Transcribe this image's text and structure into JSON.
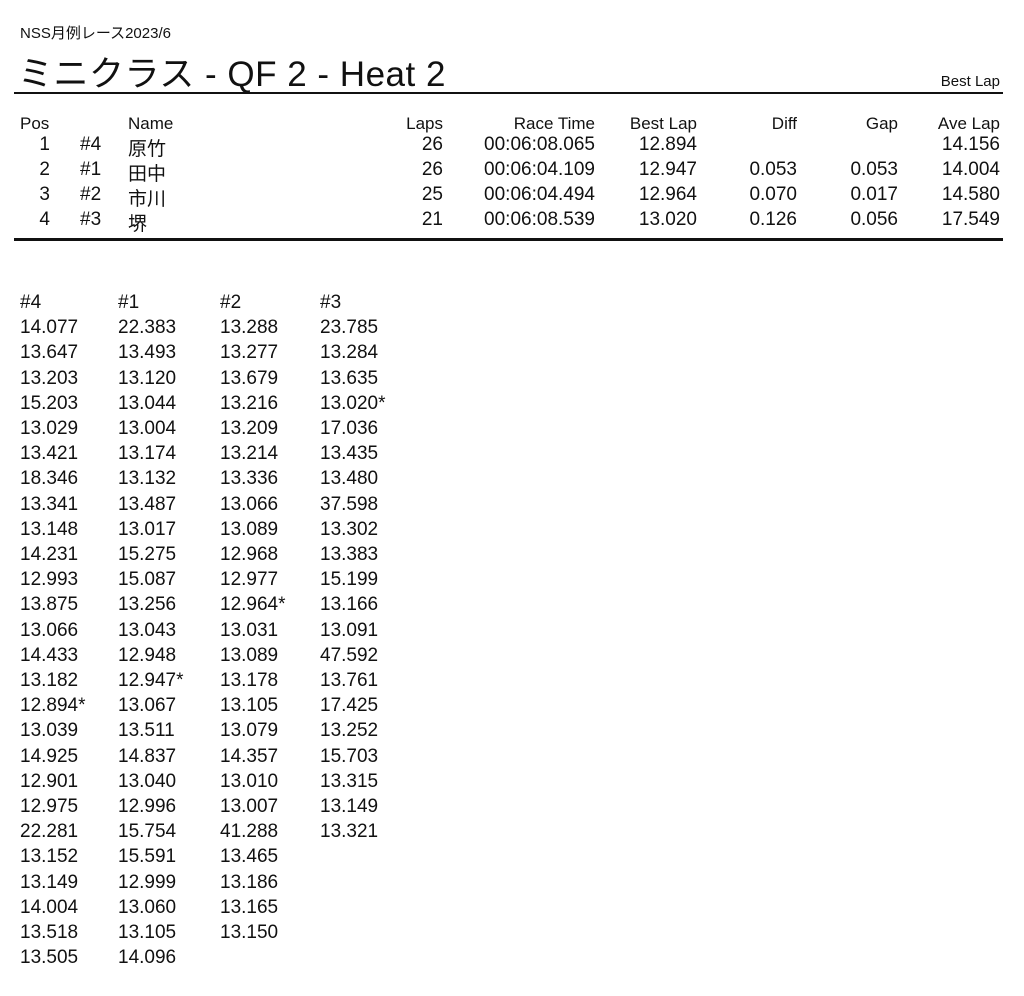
{
  "header": {
    "event": "NSS月例レース2023/6",
    "title": "ミニクラス  -  QF 2  -  Heat 2",
    "sort_label": "Best Lap"
  },
  "results": {
    "columns": [
      "Pos",
      "Name",
      "Laps",
      "Race Time",
      "Best Lap",
      "Diff",
      "Gap",
      "Ave Lap"
    ],
    "rows": [
      {
        "pos": "1",
        "no": "#4",
        "name": "原竹",
        "laps": "26",
        "race_time": "00:06:08.065",
        "best_lap": "12.894",
        "diff": "",
        "gap": "",
        "ave_lap": "14.156"
      },
      {
        "pos": "2",
        "no": "#1",
        "name": "田中",
        "laps": "26",
        "race_time": "00:06:04.109",
        "best_lap": "12.947",
        "diff": "0.053",
        "gap": "0.053",
        "ave_lap": "14.004"
      },
      {
        "pos": "3",
        "no": "#2",
        "name": "市川",
        "laps": "25",
        "race_time": "00:06:04.494",
        "best_lap": "12.964",
        "diff": "0.070",
        "gap": "0.017",
        "ave_lap": "14.580"
      },
      {
        "pos": "4",
        "no": "#3",
        "name": "堺",
        "laps": "21",
        "race_time": "00:06:08.539",
        "best_lap": "13.020",
        "diff": "0.126",
        "gap": "0.056",
        "ave_lap": "17.549"
      }
    ]
  },
  "lap_times": [
    {
      "car": "#4",
      "laps": [
        "14.077",
        "13.647",
        "13.203",
        "15.203",
        "13.029",
        "13.421",
        "18.346",
        "13.341",
        "13.148",
        "14.231",
        "12.993",
        "13.875",
        "13.066",
        "14.433",
        "13.182",
        "12.894*",
        "13.039",
        "14.925",
        "12.901",
        "12.975",
        "22.281",
        "13.152",
        "13.149",
        "14.004",
        "13.518",
        "13.505"
      ]
    },
    {
      "car": "#1",
      "laps": [
        "22.383",
        "13.493",
        "13.120",
        "13.044",
        "13.004",
        "13.174",
        "13.132",
        "13.487",
        "13.017",
        "15.275",
        "15.087",
        "13.256",
        "13.043",
        "12.948",
        "12.947*",
        "13.067",
        "13.511",
        "14.837",
        "13.040",
        "12.996",
        "15.754",
        "15.591",
        "12.999",
        "13.060",
        "13.105",
        "14.096"
      ]
    },
    {
      "car": "#2",
      "laps": [
        "13.288",
        "13.277",
        "13.679",
        "13.216",
        "13.209",
        "13.214",
        "13.336",
        "13.066",
        "13.089",
        "12.968",
        "12.977",
        "12.964*",
        "13.031",
        "13.089",
        "13.178",
        "13.105",
        "13.079",
        "14.357",
        "13.010",
        "13.007",
        "41.288",
        "13.465",
        "13.186",
        "13.165",
        "13.150"
      ]
    },
    {
      "car": "#3",
      "laps": [
        "23.785",
        "13.284",
        "13.635",
        "13.020*",
        "17.036",
        "13.435",
        "13.480",
        "37.598",
        "13.302",
        "13.383",
        "15.199",
        "13.166",
        "13.091",
        "47.592",
        "13.761",
        "17.425",
        "13.252",
        "15.703",
        "13.315",
        "13.149",
        "13.321"
      ]
    }
  ]
}
